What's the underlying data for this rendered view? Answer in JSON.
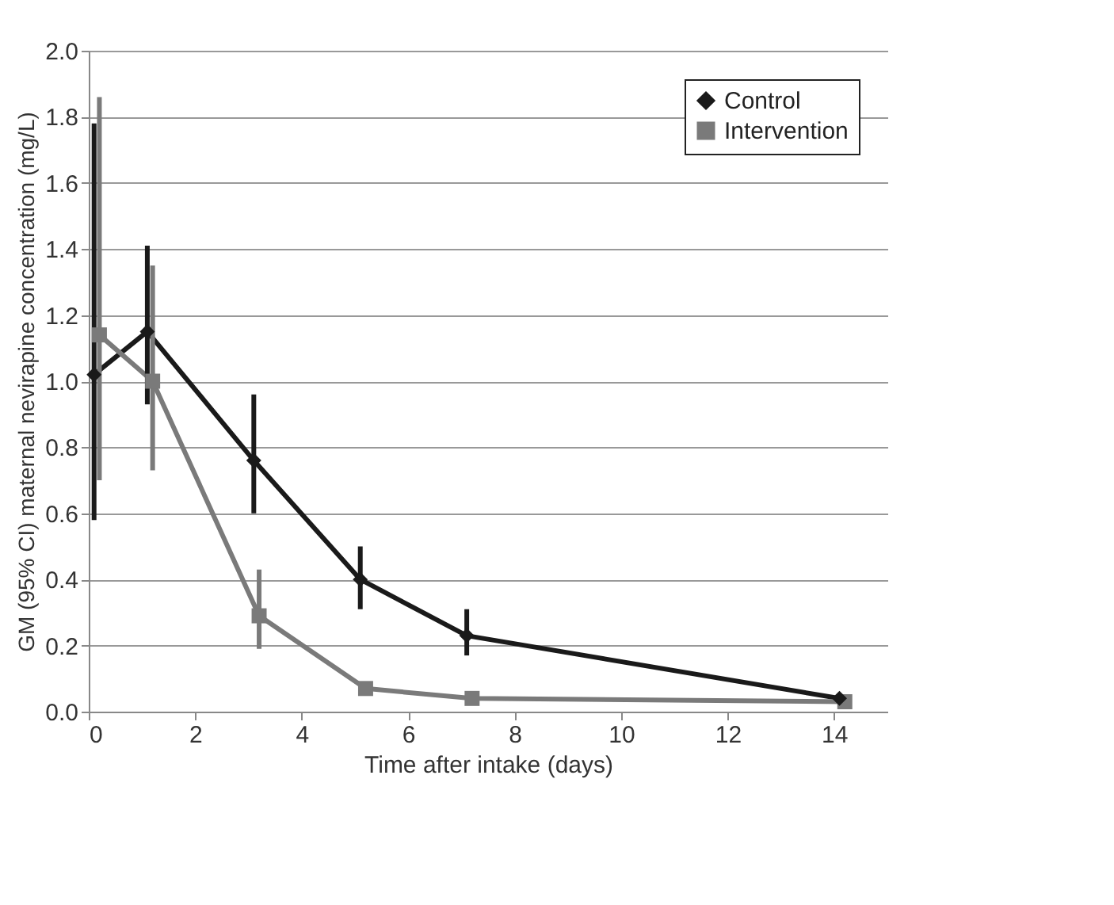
{
  "chart_data": {
    "type": "line",
    "xlabel": "Time after intake (days)",
    "ylabel": "GM (95% CI) maternal nevirapine concentration (mg/L)",
    "xlim": [
      0,
      15
    ],
    "xticks": [
      0,
      2,
      4,
      6,
      8,
      10,
      12,
      14
    ],
    "ylim": [
      0,
      2
    ],
    "yticks": [
      {
        "value": 0,
        "label": "0.0"
      },
      {
        "value": 0.2,
        "label": "0.2"
      },
      {
        "value": 0.4,
        "label": "0.4"
      },
      {
        "value": 0.6,
        "label": "0.6"
      },
      {
        "value": 0.8,
        "label": "0.8"
      },
      {
        "value": 1,
        "label": "1.0"
      },
      {
        "value": 1.2,
        "label": "1.2"
      },
      {
        "value": 1.4,
        "label": "1.4"
      },
      {
        "value": 1.6,
        "label": "1.6"
      },
      {
        "value": 1.8,
        "label": "1.8"
      },
      {
        "value": 2,
        "label": "2.0"
      }
    ],
    "grid": "y",
    "legend": "top right",
    "series": [
      {
        "name": "Control",
        "color": "#1a1a1a",
        "marker": "diamond",
        "x": [
          0.1,
          1.1,
          3.1,
          5.1,
          7.1,
          14.1
        ],
        "values": [
          1.02,
          1.15,
          0.76,
          0.4,
          0.23,
          0.04
        ],
        "errors": [
          [
            0.58,
            1.78
          ],
          [
            0.93,
            1.41
          ],
          [
            0.6,
            0.96
          ],
          [
            0.31,
            0.5
          ],
          [
            0.17,
            0.31
          ],
          null
        ]
      },
      {
        "name": "Intervention",
        "color": "#7a7a7a",
        "marker": "square",
        "x": [
          0.2,
          1.2,
          3.2,
          5.2,
          7.2,
          14.2
        ],
        "values": [
          1.14,
          1.0,
          0.29,
          0.07,
          0.04,
          0.03
        ],
        "errors": [
          [
            0.7,
            1.86
          ],
          [
            0.73,
            1.35
          ],
          [
            0.19,
            0.43
          ],
          null,
          null,
          null
        ]
      }
    ]
  }
}
